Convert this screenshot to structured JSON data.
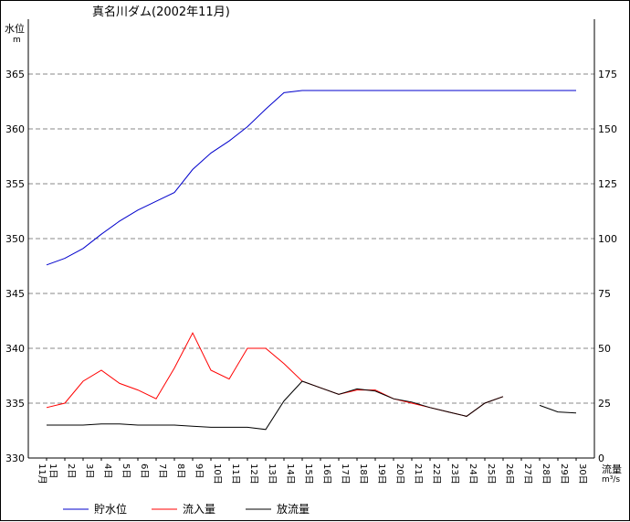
{
  "chart_data": {
    "type": "line",
    "title": "真名川ダム(2002年11月)",
    "y_left_label": "水位",
    "y_left_unit": "m",
    "y_right_label": "流量",
    "y_right_unit": "m³/s",
    "x_month_label": "11月",
    "categories": [
      "1日",
      "2日",
      "3日",
      "4日",
      "5日",
      "6日",
      "7日",
      "8日",
      "9日",
      "10日",
      "11日",
      "12日",
      "13日",
      "14日",
      "15日",
      "16日",
      "17日",
      "18日",
      "19日",
      "20日",
      "21日",
      "22日",
      "23日",
      "24日",
      "25日",
      "26日",
      "27日",
      "28日",
      "29日",
      "30日"
    ],
    "y_left_ticks": [
      "330",
      "335",
      "340",
      "345",
      "350",
      "355",
      "360",
      "365"
    ],
    "y_right_ticks": [
      "0",
      "25",
      "50",
      "75",
      "100",
      "125",
      "150",
      "175"
    ],
    "y_left_lim": [
      330,
      370
    ],
    "y_right_lim": [
      0,
      200
    ],
    "grid": true,
    "legend_position": "bottom",
    "series": [
      {
        "name": "貯水位",
        "axis": "left",
        "color": "#0000cc",
        "values": [
          347.6,
          348.2,
          349.1,
          350.4,
          351.6,
          352.6,
          353.4,
          354.2,
          356.3,
          357.8,
          358.9,
          360.2,
          361.8,
          363.3,
          363.5,
          363.5,
          363.5,
          363.5,
          363.5,
          363.5,
          363.5,
          363.5,
          363.5,
          363.5,
          363.5,
          363.5,
          363.5,
          363.5,
          363.5,
          363.5
        ]
      },
      {
        "name": "流入量",
        "axis": "right",
        "color": "#ff0000",
        "values": [
          23,
          25,
          35,
          40,
          34,
          31,
          27,
          41,
          57,
          40,
          36,
          50,
          50,
          43,
          35,
          32,
          29,
          31,
          31,
          27,
          25,
          23,
          21,
          19,
          25,
          28,
          null,
          null,
          null,
          null
        ]
      },
      {
        "name": "放流量",
        "axis": "right",
        "color": "#000000",
        "values": [
          15,
          15,
          15,
          15.5,
          15.5,
          15,
          15,
          15,
          14.5,
          14,
          14,
          14,
          13,
          26,
          35,
          32,
          29,
          31.5,
          30.5,
          27,
          25.5,
          23,
          21,
          19,
          25,
          28,
          null,
          24,
          21,
          20.5
        ]
      }
    ]
  }
}
